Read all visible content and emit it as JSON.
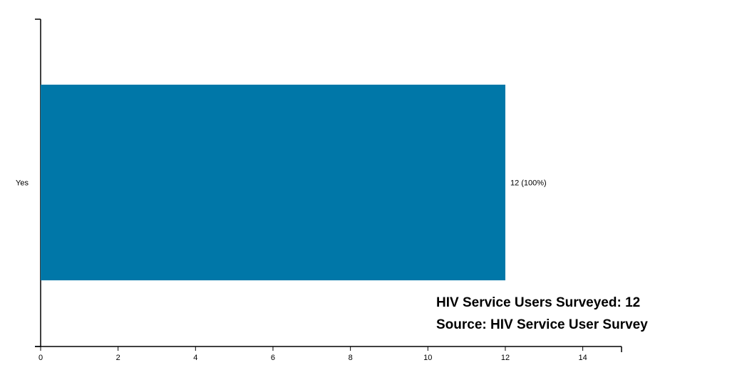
{
  "chart_data": {
    "type": "bar",
    "orientation": "horizontal",
    "categories": [
      "Yes"
    ],
    "values": [
      12
    ],
    "data_labels": [
      "12 (100%)"
    ],
    "xlim": [
      0,
      15
    ],
    "xticks": [
      0,
      2,
      4,
      6,
      8,
      10,
      12,
      14
    ],
    "xtick_labels": [
      "0",
      "2",
      "4",
      "6",
      "8",
      "10",
      "12",
      "14"
    ],
    "title": "",
    "xlabel": "",
    "ylabel": "",
    "grid": false,
    "legend": "none",
    "annotations": [
      "HIV Service Users Surveyed: 12",
      "Source: HIV Service User Survey"
    ],
    "colors": {
      "bar": "#0077a8",
      "axis": "#000000"
    }
  }
}
